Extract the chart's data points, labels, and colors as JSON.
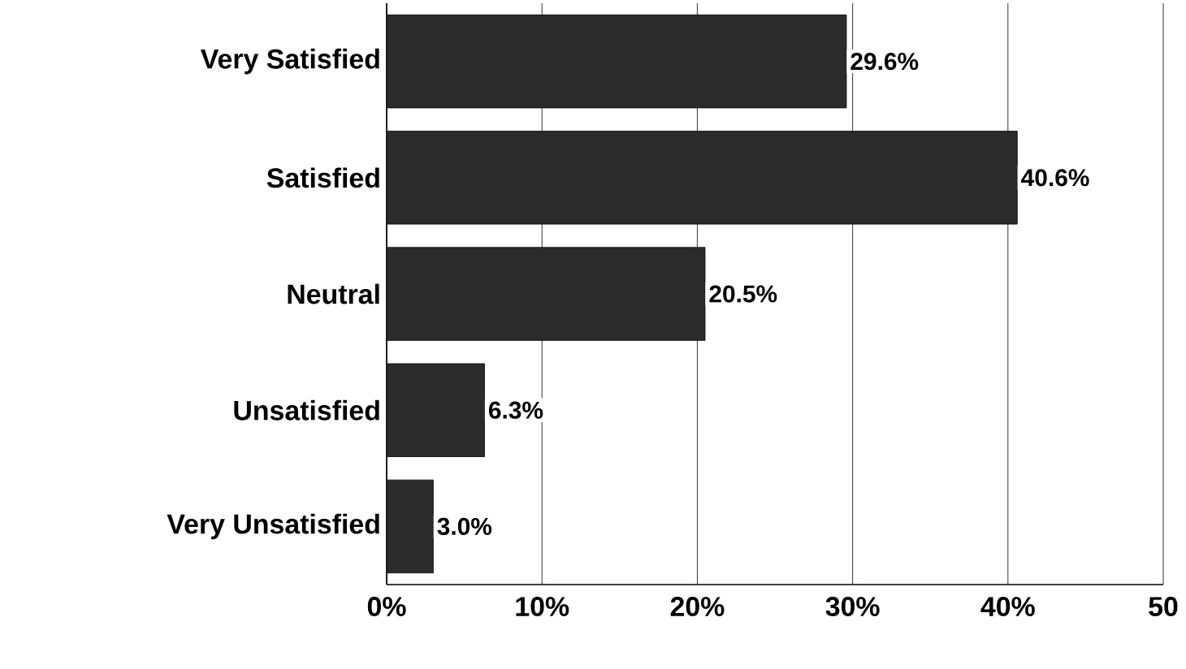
{
  "chart_data": {
    "type": "bar",
    "orientation": "horizontal",
    "categories": [
      "Very Satisfied",
      "Satisfied",
      "Neutral",
      "Unsatisfied",
      "Very Unsatisfied"
    ],
    "values": [
      29.6,
      40.6,
      20.5,
      6.3,
      3.0
    ],
    "value_labels": [
      "29.6%",
      "40.6%",
      "20.5%",
      "6.3%",
      "3.0%"
    ],
    "color": "#2b2b2b",
    "xlim": [
      0,
      50
    ],
    "xticks": [
      {
        "value": 0,
        "label": "0%"
      },
      {
        "value": 10,
        "label": "10%"
      },
      {
        "value": 20,
        "label": "20%"
      },
      {
        "value": 30,
        "label": "30%"
      },
      {
        "value": 40,
        "label": "40%"
      },
      {
        "value": 50,
        "label": "50"
      }
    ],
    "grid": "x"
  }
}
